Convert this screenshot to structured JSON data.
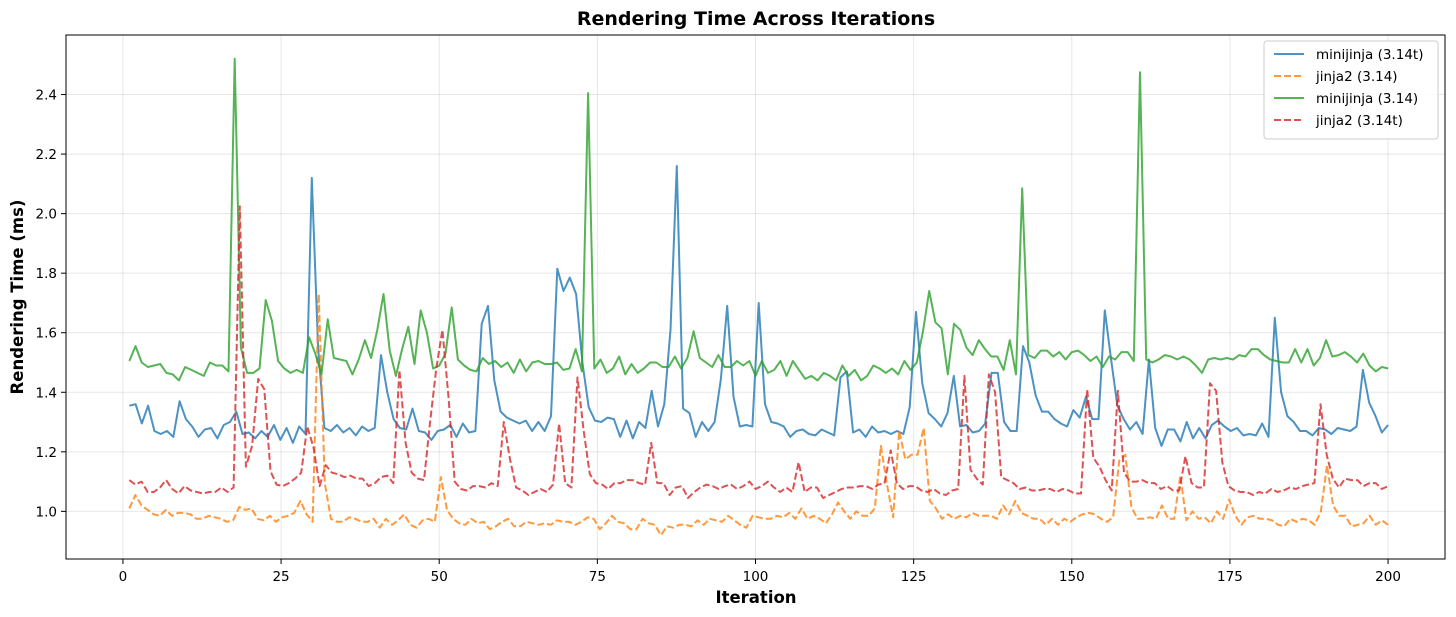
{
  "chart_data": {
    "type": "line",
    "title": "Rendering Time Across Iterations",
    "xlabel": "Iteration",
    "ylabel": "Rendering Time (ms)",
    "xlim": [
      -9,
      209
    ],
    "ylim": [
      0.84,
      2.6
    ],
    "xticks": [
      0,
      25,
      50,
      75,
      100,
      125,
      150,
      175,
      200
    ],
    "yticks": [
      1.0,
      1.2,
      1.4,
      1.6,
      1.8,
      2.0,
      2.2,
      2.4
    ],
    "ytick_labels": [
      "1.0",
      "1.2",
      "1.4",
      "1.6",
      "1.8",
      "2.0",
      "2.2",
      "2.4"
    ],
    "grid": true,
    "legend_position": "top-right",
    "x_start": 1,
    "x_end": 200,
    "series": [
      {
        "name": "minijinja (3.14t)",
        "color": "#1f77b4",
        "dashed": false,
        "values": [
          1.355,
          1.36,
          1.295,
          1.355,
          1.27,
          1.26,
          1.27,
          1.25,
          1.37,
          1.31,
          1.285,
          1.25,
          1.275,
          1.28,
          1.245,
          1.29,
          1.3,
          1.335,
          1.26,
          1.265,
          1.245,
          1.27,
          1.25,
          1.29,
          1.24,
          1.28,
          1.23,
          1.285,
          1.26,
          2.12,
          1.55,
          1.28,
          1.27,
          1.29,
          1.265,
          1.28,
          1.255,
          1.285,
          1.27,
          1.28,
          1.525,
          1.4,
          1.31,
          1.28,
          1.275,
          1.345,
          1.27,
          1.265,
          1.24,
          1.27,
          1.275,
          1.29,
          1.25,
          1.295,
          1.265,
          1.27,
          1.63,
          1.69,
          1.44,
          1.335,
          1.315,
          1.305,
          1.295,
          1.305,
          1.27,
          1.3,
          1.27,
          1.32,
          1.815,
          1.74,
          1.785,
          1.73,
          1.5,
          1.35,
          1.305,
          1.3,
          1.315,
          1.31,
          1.25,
          1.305,
          1.245,
          1.3,
          1.28,
          1.405,
          1.285,
          1.36,
          1.61,
          2.16,
          1.345,
          1.33,
          1.25,
          1.3,
          1.27,
          1.3,
          1.445,
          1.69,
          1.385,
          1.285,
          1.29,
          1.285,
          1.7,
          1.36,
          1.3,
          1.295,
          1.285,
          1.25,
          1.27,
          1.275,
          1.26,
          1.255,
          1.275,
          1.265,
          1.255,
          1.45,
          1.47,
          1.265,
          1.275,
          1.25,
          1.285,
          1.265,
          1.27,
          1.26,
          1.27,
          1.26,
          1.35,
          1.67,
          1.43,
          1.33,
          1.31,
          1.285,
          1.33,
          1.455,
          1.285,
          1.29,
          1.265,
          1.27,
          1.295,
          1.465,
          1.465,
          1.3,
          1.27,
          1.27,
          1.555,
          1.5,
          1.39,
          1.335,
          1.335,
          1.31,
          1.295,
          1.285,
          1.34,
          1.315,
          1.385,
          1.31,
          1.31,
          1.675,
          1.51,
          1.355,
          1.31,
          1.275,
          1.3,
          1.26,
          1.51,
          1.28,
          1.22,
          1.275,
          1.275,
          1.235,
          1.3,
          1.245,
          1.28,
          1.245,
          1.29,
          1.305,
          1.285,
          1.27,
          1.28,
          1.255,
          1.26,
          1.255,
          1.295,
          1.25,
          1.65,
          1.4,
          1.32,
          1.3,
          1.27,
          1.27,
          1.255,
          1.28,
          1.275,
          1.26,
          1.28,
          1.275,
          1.27,
          1.285,
          1.475,
          1.365,
          1.32,
          1.265,
          1.29
        ]
      },
      {
        "name": "jinja2 (3.14)",
        "color": "#ff7f0e",
        "dashed": true,
        "values": [
          1.01,
          1.055,
          1.02,
          1.005,
          0.99,
          0.985,
          1.005,
          0.985,
          0.995,
          0.995,
          0.99,
          0.975,
          0.975,
          0.985,
          0.98,
          0.975,
          0.965,
          0.97,
          1.015,
          1.005,
          1.01,
          0.975,
          0.97,
          0.985,
          0.965,
          0.98,
          0.985,
          0.995,
          1.035,
          0.99,
          0.965,
          1.73,
          1.095,
          0.975,
          0.965,
          0.965,
          0.98,
          0.975,
          0.965,
          0.965,
          0.975,
          0.945,
          0.975,
          0.955,
          0.97,
          0.99,
          0.955,
          0.945,
          0.97,
          0.975,
          0.965,
          1.115,
          1.005,
          0.975,
          0.96,
          0.955,
          0.975,
          0.96,
          0.965,
          0.94,
          0.95,
          0.965,
          0.975,
          0.95,
          0.95,
          0.965,
          0.96,
          0.955,
          0.96,
          0.955,
          0.97,
          0.965,
          0.965,
          0.955,
          0.965,
          0.98,
          0.975,
          0.94,
          0.96,
          0.985,
          0.965,
          0.96,
          0.94,
          0.94,
          0.975,
          0.96,
          0.955,
          0.92,
          0.95,
          0.945,
          0.955,
          0.955,
          0.95,
          0.97,
          0.955,
          0.975,
          0.97,
          0.965,
          0.985,
          0.97,
          0.955,
          0.945,
          0.985,
          0.98,
          0.975,
          0.975,
          0.985,
          0.98,
          0.995,
          0.975,
          1.01,
          0.975,
          0.985,
          0.975,
          0.96,
          0.99,
          1.03,
          1.0,
          0.975,
          1.0,
          0.985,
          0.985,
          1.01,
          1.22,
          1.09,
          0.98,
          1.27,
          1.175,
          1.19,
          1.19,
          1.28,
          1.035,
          1.01,
          0.975,
          0.99,
          0.975,
          0.985,
          0.98,
          0.995,
          0.985,
          0.985,
          0.985,
          0.975,
          1.02,
          0.99,
          1.035,
          0.995,
          0.985,
          0.975,
          0.975,
          0.955,
          0.975,
          0.955,
          0.975,
          0.965,
          0.98,
          0.99,
          0.995,
          0.99,
          0.975,
          0.965,
          0.98,
          1.17,
          1.19,
          1.015,
          0.975,
          0.975,
          0.98,
          0.975,
          1.02,
          0.975,
          0.975,
          1.12,
          0.97,
          1.0,
          0.975,
          0.98,
          0.96,
          1.0,
          0.975,
          1.04,
          0.985,
          0.955,
          0.98,
          0.985,
          0.975,
          0.975,
          0.97,
          0.955,
          0.95,
          0.975,
          0.965,
          0.975,
          0.97,
          0.955,
          1.0,
          1.155,
          1.02,
          0.985,
          0.985,
          0.95,
          0.955,
          0.96,
          0.985,
          0.955,
          0.97,
          0.955
        ]
      },
      {
        "name": "minijinja (3.14)",
        "color": "#2ca02c",
        "dashed": false,
        "values": [
          1.505,
          1.555,
          1.5,
          1.485,
          1.49,
          1.495,
          1.465,
          1.46,
          1.44,
          1.485,
          1.475,
          1.465,
          1.455,
          1.5,
          1.49,
          1.49,
          1.47,
          2.52,
          1.55,
          1.465,
          1.465,
          1.48,
          1.71,
          1.64,
          1.505,
          1.48,
          1.465,
          1.475,
          1.465,
          1.585,
          1.53,
          1.46,
          1.645,
          1.515,
          1.51,
          1.505,
          1.46,
          1.51,
          1.575,
          1.515,
          1.61,
          1.73,
          1.54,
          1.455,
          1.545,
          1.62,
          1.495,
          1.675,
          1.6,
          1.48,
          1.49,
          1.53,
          1.685,
          1.51,
          1.49,
          1.475,
          1.47,
          1.515,
          1.495,
          1.505,
          1.485,
          1.5,
          1.465,
          1.51,
          1.47,
          1.5,
          1.505,
          1.495,
          1.495,
          1.5,
          1.475,
          1.48,
          1.545,
          1.47,
          2.405,
          1.48,
          1.51,
          1.465,
          1.48,
          1.52,
          1.46,
          1.495,
          1.465,
          1.48,
          1.5,
          1.5,
          1.485,
          1.485,
          1.52,
          1.48,
          1.515,
          1.605,
          1.515,
          1.5,
          1.485,
          1.525,
          1.485,
          1.485,
          1.505,
          1.49,
          1.505,
          1.455,
          1.505,
          1.465,
          1.475,
          1.505,
          1.455,
          1.505,
          1.475,
          1.445,
          1.455,
          1.44,
          1.465,
          1.455,
          1.44,
          1.49,
          1.455,
          1.475,
          1.44,
          1.455,
          1.49,
          1.48,
          1.465,
          1.48,
          1.46,
          1.505,
          1.475,
          1.5,
          1.605,
          1.74,
          1.635,
          1.615,
          1.46,
          1.63,
          1.61,
          1.55,
          1.525,
          1.575,
          1.545,
          1.52,
          1.52,
          1.475,
          1.575,
          1.46,
          2.085,
          1.525,
          1.515,
          1.54,
          1.54,
          1.52,
          1.535,
          1.51,
          1.535,
          1.54,
          1.525,
          1.505,
          1.52,
          1.485,
          1.52,
          1.51,
          1.535,
          1.535,
          1.505,
          2.475,
          1.51,
          1.5,
          1.51,
          1.525,
          1.52,
          1.51,
          1.52,
          1.51,
          1.49,
          1.465,
          1.51,
          1.515,
          1.51,
          1.515,
          1.51,
          1.525,
          1.52,
          1.545,
          1.545,
          1.525,
          1.51,
          1.505,
          1.5,
          1.5,
          1.545,
          1.5,
          1.545,
          1.49,
          1.515,
          1.575,
          1.52,
          1.525,
          1.535,
          1.52,
          1.5,
          1.53,
          1.49,
          1.47,
          1.485,
          1.48
        ]
      },
      {
        "name": "jinja2 (3.14t)",
        "color": "#d62728",
        "dashed": true,
        "values": [
          1.105,
          1.09,
          1.1,
          1.065,
          1.065,
          1.08,
          1.105,
          1.075,
          1.06,
          1.085,
          1.07,
          1.065,
          1.06,
          1.065,
          1.065,
          1.08,
          1.065,
          1.08,
          2.025,
          1.15,
          1.22,
          1.445,
          1.41,
          1.135,
          1.09,
          1.085,
          1.095,
          1.11,
          1.13,
          1.285,
          1.215,
          1.085,
          1.155,
          1.13,
          1.125,
          1.115,
          1.12,
          1.11,
          1.11,
          1.085,
          1.095,
          1.115,
          1.12,
          1.095,
          1.475,
          1.23,
          1.13,
          1.11,
          1.105,
          1.3,
          1.48,
          1.61,
          1.38,
          1.1,
          1.075,
          1.07,
          1.085,
          1.085,
          1.08,
          1.095,
          1.085,
          1.3,
          1.175,
          1.08,
          1.07,
          1.055,
          1.065,
          1.075,
          1.065,
          1.09,
          1.295,
          1.095,
          1.08,
          1.45,
          1.27,
          1.125,
          1.095,
          1.09,
          1.075,
          1.095,
          1.095,
          1.105,
          1.105,
          1.095,
          1.09,
          1.23,
          1.095,
          1.095,
          1.055,
          1.08,
          1.085,
          1.045,
          1.065,
          1.08,
          1.09,
          1.085,
          1.075,
          1.085,
          1.09,
          1.075,
          1.085,
          1.1,
          1.075,
          1.085,
          1.1,
          1.08,
          1.065,
          1.08,
          1.065,
          1.165,
          1.065,
          1.08,
          1.08,
          1.045,
          1.055,
          1.065,
          1.075,
          1.08,
          1.08,
          1.085,
          1.085,
          1.075,
          1.09,
          1.095,
          1.205,
          1.095,
          1.075,
          1.085,
          1.085,
          1.07,
          1.065,
          1.075,
          1.06,
          1.055,
          1.07,
          1.075,
          1.455,
          1.14,
          1.11,
          1.09,
          1.46,
          1.4,
          1.115,
          1.105,
          1.095,
          1.075,
          1.08,
          1.07,
          1.07,
          1.075,
          1.075,
          1.065,
          1.075,
          1.07,
          1.06,
          1.06,
          1.41,
          1.18,
          1.15,
          1.105,
          1.07,
          1.405,
          1.13,
          1.1,
          1.1,
          1.105,
          1.095,
          1.095,
          1.075,
          1.085,
          1.07,
          1.07,
          1.185,
          1.095,
          1.08,
          1.08,
          1.43,
          1.405,
          1.165,
          1.085,
          1.07,
          1.065,
          1.065,
          1.055,
          1.065,
          1.06,
          1.075,
          1.065,
          1.07,
          1.08,
          1.075,
          1.085,
          1.09,
          1.095,
          1.36,
          1.19,
          1.11,
          1.08,
          1.11,
          1.105,
          1.105,
          1.085,
          1.095,
          1.095,
          1.075,
          1.085
        ]
      }
    ]
  }
}
